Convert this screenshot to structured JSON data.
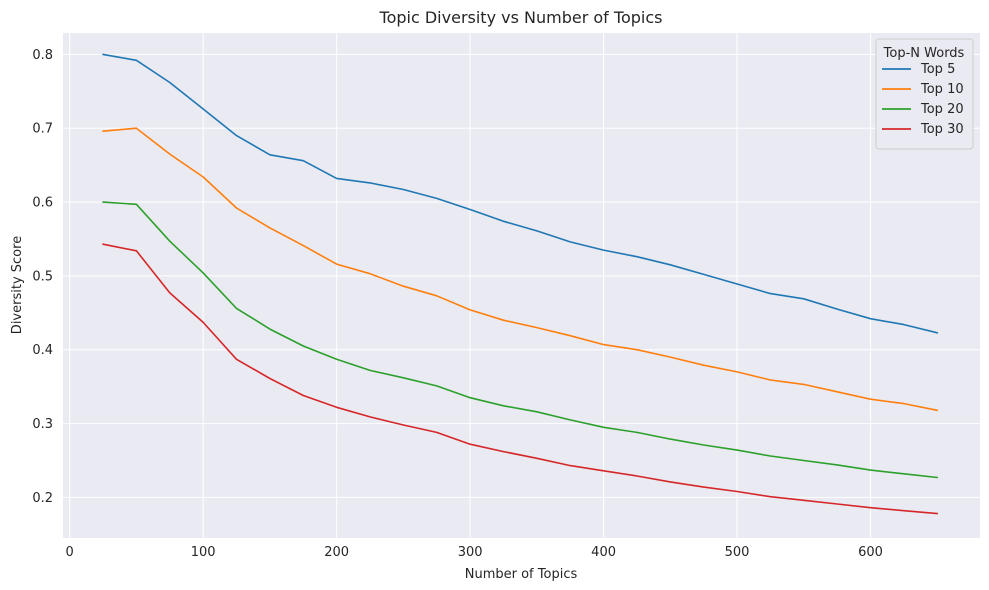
{
  "chart_data": {
    "type": "line",
    "title": "Topic Diversity vs Number of Topics",
    "xlabel": "Number of Topics",
    "ylabel": "Diversity Score",
    "xlim": [
      -5,
      682
    ],
    "ylim": [
      0.145,
      0.829
    ],
    "xticks": [
      0,
      100,
      200,
      300,
      400,
      500,
      600
    ],
    "yticks": [
      0.2,
      0.3,
      0.4,
      0.5,
      0.6,
      0.7,
      0.8
    ],
    "grid": true,
    "legend": {
      "title": "Top-N Words",
      "position": "top-right"
    },
    "x": [
      25,
      50,
      75,
      100,
      125,
      150,
      175,
      200,
      225,
      250,
      275,
      300,
      325,
      350,
      375,
      400,
      425,
      450,
      475,
      500,
      525,
      550,
      575,
      600,
      625,
      650
    ],
    "series": [
      {
        "name": "Top 5",
        "color": "#1f77b4",
        "values": [
          0.8,
          0.792,
          0.762,
          0.726,
          0.69,
          0.664,
          0.656,
          0.632,
          0.626,
          0.617,
          0.605,
          0.59,
          0.574,
          0.561,
          0.546,
          0.535,
          0.526,
          0.515,
          0.502,
          0.489,
          0.476,
          0.469,
          0.455,
          0.442,
          0.434,
          0.423
        ]
      },
      {
        "name": "Top 10",
        "color": "#ff7f0e",
        "values": [
          0.696,
          0.7,
          0.665,
          0.634,
          0.592,
          0.565,
          0.541,
          0.516,
          0.503,
          0.486,
          0.473,
          0.454,
          0.44,
          0.43,
          0.419,
          0.407,
          0.4,
          0.39,
          0.379,
          0.37,
          0.359,
          0.353,
          0.343,
          0.333,
          0.327,
          0.318
        ]
      },
      {
        "name": "Top 20",
        "color": "#2ca02c",
        "values": [
          0.6,
          0.597,
          0.547,
          0.504,
          0.456,
          0.428,
          0.405,
          0.387,
          0.372,
          0.362,
          0.351,
          0.335,
          0.324,
          0.316,
          0.305,
          0.295,
          0.288,
          0.279,
          0.271,
          0.264,
          0.256,
          0.25,
          0.244,
          0.237,
          0.232,
          0.227
        ]
      },
      {
        "name": "Top 30",
        "color": "#d62728",
        "values": [
          0.543,
          0.534,
          0.477,
          0.437,
          0.387,
          0.361,
          0.338,
          0.322,
          0.309,
          0.298,
          0.288,
          0.272,
          0.262,
          0.253,
          0.243,
          0.236,
          0.229,
          0.221,
          0.214,
          0.208,
          0.201,
          0.196,
          0.191,
          0.186,
          0.182,
          0.178
        ]
      }
    ]
  },
  "colors": {
    "plot_background": "#eaeaf2",
    "grid": "#ffffff",
    "text": "#262626"
  }
}
